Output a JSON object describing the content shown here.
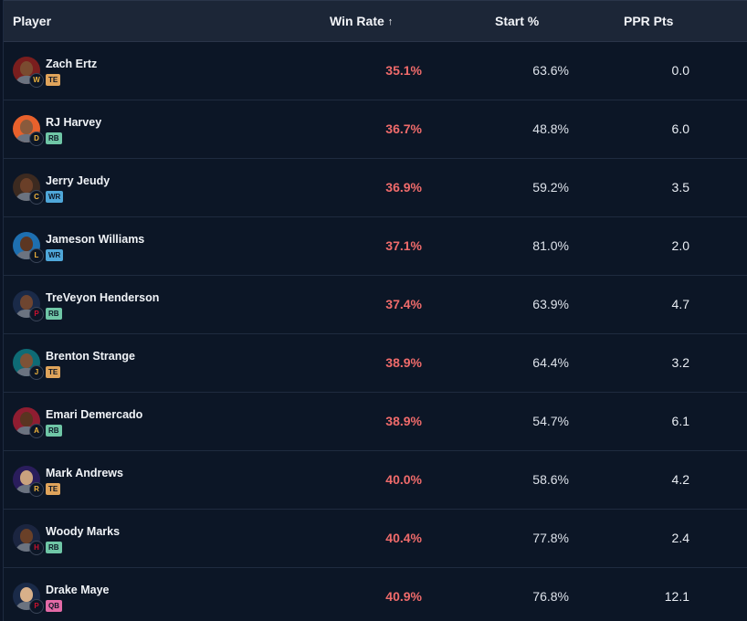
{
  "header": {
    "player": "Player",
    "win_rate": "Win Rate",
    "sort_arrow": "↑",
    "start_pct": "Start %",
    "ppr_pts": "PPR Pts"
  },
  "colors": {
    "win_rate": "#f06b6b",
    "pos_TE": "#e0a45b",
    "pos_RB": "#6fc6a6",
    "pos_WR": "#4fa7d9",
    "pos_QB": "#e36aa6"
  },
  "rows": [
    {
      "name": "Zach Ertz",
      "pos": "TE",
      "win": "35.1%",
      "start": "63.6%",
      "ppr": "0.0",
      "team_icon": "commanders-logo-icon",
      "team_color": "#7a1e1e",
      "team_mark": "W"
    },
    {
      "name": "RJ Harvey",
      "pos": "RB",
      "win": "36.7%",
      "start": "48.8%",
      "ppr": "6.0",
      "team_icon": "broncos-logo-icon",
      "team_color": "#e8612c",
      "team_mark": "D"
    },
    {
      "name": "Jerry Jeudy",
      "pos": "WR",
      "win": "36.9%",
      "start": "59.2%",
      "ppr": "3.5",
      "team_icon": "browns-logo-icon",
      "team_color": "#3c2a20",
      "team_mark": "C"
    },
    {
      "name": "Jameson Williams",
      "pos": "WR",
      "win": "37.1%",
      "start": "81.0%",
      "ppr": "2.0",
      "team_icon": "lions-logo-icon",
      "team_color": "#1e6fb0",
      "team_mark": "L"
    },
    {
      "name": "TreVeyon Henderson",
      "pos": "RB",
      "win": "37.4%",
      "start": "63.9%",
      "ppr": "4.7",
      "team_icon": "patriots-logo-icon",
      "team_color": "#1a2a48",
      "team_mark": "P"
    },
    {
      "name": "Brenton Strange",
      "pos": "TE",
      "win": "38.9%",
      "start": "64.4%",
      "ppr": "3.2",
      "team_icon": "jaguars-logo-icon",
      "team_color": "#0e6b75",
      "team_mark": "J"
    },
    {
      "name": "Emari Demercado",
      "pos": "RB",
      "win": "38.9%",
      "start": "54.7%",
      "ppr": "6.1",
      "team_icon": "cardinals-logo-icon",
      "team_color": "#8f1d31",
      "team_mark": "A"
    },
    {
      "name": "Mark Andrews",
      "pos": "TE",
      "win": "40.0%",
      "start": "58.6%",
      "ppr": "4.2",
      "team_icon": "ravens-logo-icon",
      "team_color": "#2a1d5c",
      "team_mark": "R"
    },
    {
      "name": "Woody Marks",
      "pos": "RB",
      "win": "40.4%",
      "start": "77.8%",
      "ppr": "2.4",
      "team_icon": "texans-logo-icon",
      "team_color": "#1b2540",
      "team_mark": "H"
    },
    {
      "name": "Drake Maye",
      "pos": "QB",
      "win": "40.9%",
      "start": "76.8%",
      "ppr": "12.1",
      "team_icon": "patriots-logo-icon",
      "team_color": "#1a2a48",
      "team_mark": "P"
    }
  ]
}
